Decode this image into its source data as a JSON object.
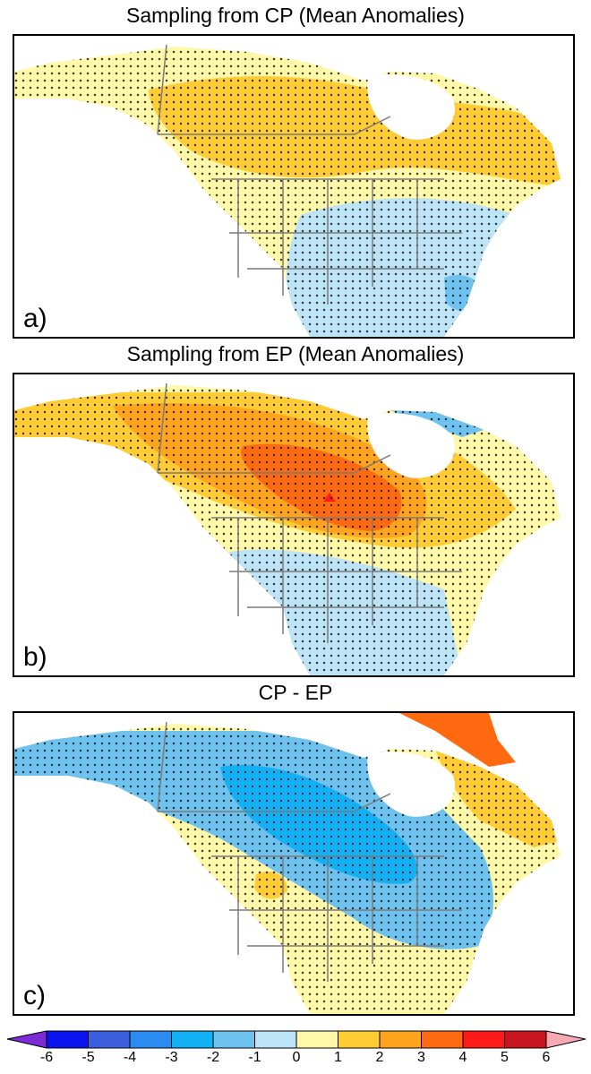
{
  "panels": [
    {
      "title": "Sampling from CP (Mean Anomalies)",
      "label": "a)"
    },
    {
      "title": "Sampling from EP (Mean Anomalies)",
      "label": "b)"
    },
    {
      "title": "CP - EP",
      "label": "c)"
    }
  ],
  "colorbar": {
    "ticks": [
      "-6",
      "-5",
      "-4",
      "-3",
      "-2",
      "-1",
      "0",
      "1",
      "2",
      "3",
      "4",
      "5",
      "6"
    ],
    "colors": [
      "#7b2cd6",
      "#0a14f0",
      "#3c5fe0",
      "#2a8cf0",
      "#12b0f5",
      "#6ec2ef",
      "#bde3f7",
      "#fff8a8",
      "#ffcc33",
      "#ffa41c",
      "#ff6a10",
      "#ff1a1a",
      "#c8141e",
      "#f7a8b0"
    ]
  },
  "colors": {
    "land_neutral": "#fff8a8",
    "ocean": "#ffffff",
    "borders": "#7a7a7a",
    "stipple": "#1a1a1a"
  }
}
